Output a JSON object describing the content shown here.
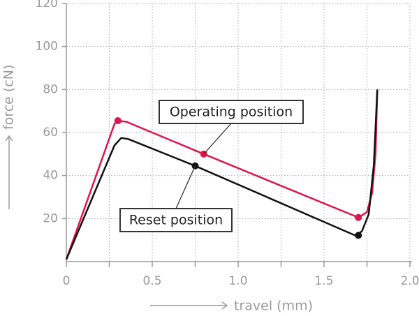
{
  "chart_data": {
    "type": "line",
    "xlabel": "travel (mm)",
    "ylabel": "force (cN)",
    "xlim": [
      0,
      2.0
    ],
    "ylim": [
      0,
      120
    ],
    "xticks": [
      0,
      0.5,
      {
        "value": 1.0,
        "label": "1.0"
      },
      1.5,
      {
        "value": 2.0,
        "label": "2.0"
      }
    ],
    "yticks": [
      20,
      40,
      60,
      80,
      100,
      120
    ],
    "grid": true,
    "series": [
      {
        "color": "#e2134a",
        "x": [
          0,
          0.28,
          0.3,
          0.35,
          0.8,
          1.7,
          1.75,
          1.78,
          1.8,
          1.81
        ],
        "values": [
          1,
          64,
          65.5,
          65,
          50,
          20.5,
          23,
          32,
          50,
          80
        ]
      },
      {
        "color": "#111111",
        "x": [
          0,
          0.28,
          0.32,
          0.36,
          0.75,
          1.68,
          1.72,
          1.76,
          1.79,
          1.81
        ],
        "values": [
          1,
          54,
          57.5,
          57,
          44.5,
          12.2,
          14,
          22,
          45,
          80
        ]
      }
    ],
    "markers": [
      {
        "x": 0.3,
        "y": 65.5,
        "color": "#e2134a"
      },
      {
        "x": 0.8,
        "y": 50,
        "color": "#e2134a"
      },
      {
        "x": 1.7,
        "y": 20.5,
        "color": "#e2134a"
      },
      {
        "x": 0.75,
        "y": 44.5,
        "color": "#111111"
      },
      {
        "x": 1.7,
        "y": 12.2,
        "color": "#111111"
      }
    ],
    "annotations": [
      {
        "text": "Operating position",
        "x": 0.8,
        "y": 50
      },
      {
        "text": "Reset position",
        "x": 0.75,
        "y": 44.5
      }
    ]
  }
}
